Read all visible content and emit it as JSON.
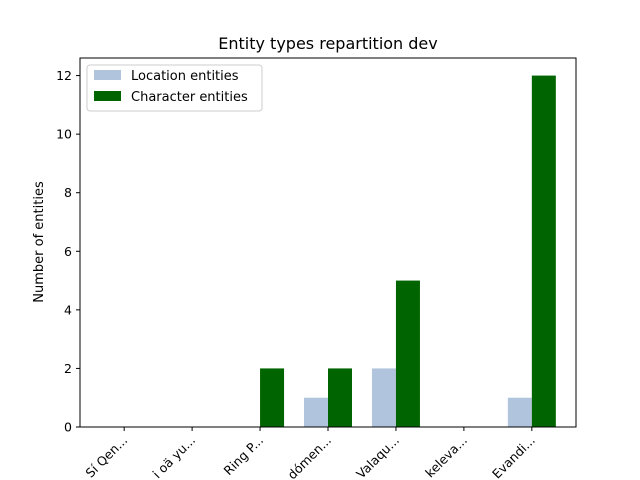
{
  "chart_data": {
    "type": "bar",
    "title": "Entity types repartition dev",
    "xlabel": "",
    "ylabel": "Number of entities",
    "ylim": [
      0,
      12.6
    ],
    "yticks": [
      0,
      2,
      4,
      6,
      8,
      10,
      12
    ],
    "grid": false,
    "legend_position": "upper-left",
    "categories": [
      "Sí Qen...",
      "i oä yu...",
      "Ring P...",
      "dómen...",
      "Valaqu...",
      "keleva...",
      "Evandi..."
    ],
    "series": [
      {
        "name": "Location entities",
        "color": "#b0c4de",
        "values": [
          0,
          0,
          0,
          1,
          2,
          0,
          1
        ]
      },
      {
        "name": "Character entities",
        "color": "#006400",
        "values": [
          0,
          0,
          2,
          2,
          5,
          0,
          12
        ]
      }
    ]
  }
}
